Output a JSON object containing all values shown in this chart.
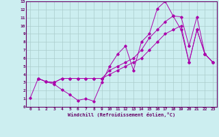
{
  "xlabel": "Windchill (Refroidissement éolien,°C)",
  "bg_color": "#cceef0",
  "grid_color": "#aacccc",
  "line_color": "#aa00aa",
  "xlim": [
    -0.5,
    23.5
  ],
  "ylim": [
    0,
    13
  ],
  "xticks": [
    0,
    1,
    2,
    3,
    4,
    5,
    6,
    7,
    8,
    9,
    10,
    11,
    12,
    13,
    14,
    15,
    16,
    17,
    18,
    19,
    20,
    21,
    22,
    23
  ],
  "yticks": [
    0,
    1,
    2,
    3,
    4,
    5,
    6,
    7,
    8,
    9,
    10,
    11,
    12,
    13
  ],
  "line1_x": [
    1,
    2,
    3,
    4,
    5,
    6,
    7,
    8,
    9,
    10,
    11,
    12,
    13,
    14,
    15,
    16,
    17,
    18,
    19,
    20,
    21,
    22,
    23
  ],
  "line1_y": [
    3.5,
    3.1,
    2.8,
    2.1,
    1.5,
    0.8,
    1.0,
    0.7,
    3.0,
    5.0,
    6.5,
    7.5,
    4.5,
    8.0,
    9.0,
    12.1,
    13.0,
    11.2,
    11.1,
    7.5,
    11.1,
    6.5,
    5.5
  ],
  "line2_x": [
    0,
    1,
    2,
    3,
    4,
    5,
    6,
    7,
    8,
    9,
    10,
    11,
    12,
    13,
    14,
    15,
    16,
    17,
    18,
    19,
    20,
    21,
    22,
    23
  ],
  "line2_y": [
    1.1,
    3.5,
    3.1,
    3.0,
    3.5,
    3.5,
    3.5,
    3.5,
    3.5,
    3.5,
    4.5,
    5.0,
    5.5,
    6.0,
    7.0,
    8.5,
    9.5,
    10.5,
    11.2,
    9.5,
    5.5,
    9.5,
    6.5,
    5.5
  ],
  "line3_x": [
    1,
    2,
    3,
    4,
    5,
    6,
    7,
    8,
    9,
    10,
    11,
    12,
    13,
    14,
    15,
    16,
    17,
    18,
    19,
    20,
    21,
    22,
    23
  ],
  "line3_y": [
    3.5,
    3.1,
    3.0,
    3.5,
    3.5,
    3.5,
    3.5,
    3.5,
    3.5,
    4.0,
    4.5,
    5.0,
    5.5,
    6.0,
    7.0,
    8.0,
    9.0,
    9.5,
    10.0,
    5.5,
    9.5,
    6.5,
    5.5
  ]
}
